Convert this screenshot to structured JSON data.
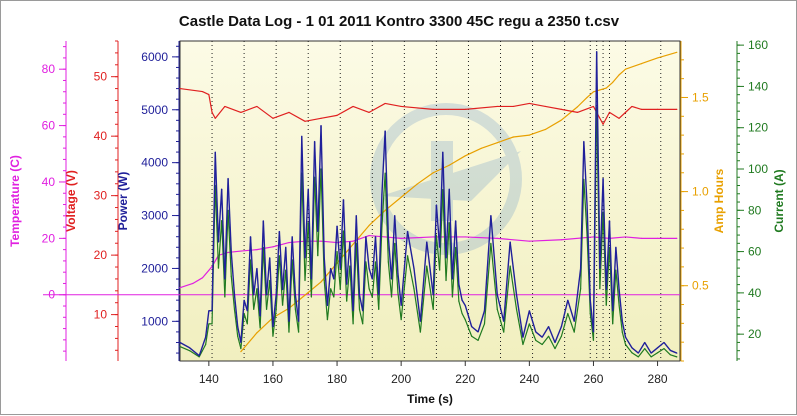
{
  "chart_data": {
    "type": "line",
    "title": "Castle Data Log - 1 01 2011 Kontro 3300 45C regu a 2350 t.csv",
    "xlabel": "Time (s)",
    "xlim": [
      131,
      287
    ],
    "xticks": [
      140,
      160,
      180,
      200,
      220,
      240,
      260,
      280
    ],
    "axes": [
      {
        "key": "temperature",
        "label": "Temperature (C)",
        "color": "#e020e0",
        "side": "left",
        "lim": [
          -23.5,
          90
        ],
        "ticks": [
          0,
          20,
          40,
          60,
          80
        ]
      },
      {
        "key": "voltage",
        "label": "Voltage (V)",
        "color": "#e02020",
        "side": "left",
        "lim": [
          2.2,
          56
        ],
        "ticks": [
          10,
          20,
          30,
          40,
          50
        ]
      },
      {
        "key": "power",
        "label": "Power (W)",
        "color": "#20209a",
        "side": "left",
        "lim": [
          250,
          6300
        ],
        "ticks": [
          1000,
          2000,
          3000,
          4000,
          5000,
          6000
        ]
      },
      {
        "key": "amp_hours",
        "label": "Amp Hours",
        "color": "#e8a000",
        "side": "right",
        "lim": [
          0.1,
          1.8
        ],
        "ticks": [
          0.5,
          1.0,
          1.5
        ]
      },
      {
        "key": "current",
        "label": "Current (A)",
        "color": "#207a20",
        "side": "right",
        "lim": [
          7,
          162
        ],
        "ticks": [
          20,
          40,
          60,
          80,
          100,
          120,
          140,
          160
        ]
      }
    ],
    "series": [
      {
        "name": "Temperature",
        "axis": "temperature",
        "color": "#e020e0",
        "x": [
          131,
          135,
          138,
          141,
          143,
          146,
          150,
          155,
          160,
          165,
          170,
          175,
          180,
          185,
          190,
          195,
          200,
          210,
          220,
          230,
          240,
          250,
          260,
          265,
          270,
          275,
          280,
          286
        ],
        "y": [
          2.5,
          4,
          6,
          10,
          14,
          15,
          15.5,
          16,
          17,
          18.5,
          19,
          19,
          18.5,
          19,
          21,
          20.5,
          20,
          20.5,
          20.5,
          20,
          19,
          19.5,
          20.5,
          20,
          20.5,
          20,
          20,
          20
        ]
      },
      {
        "name": "Voltage",
        "axis": "voltage",
        "color": "#e02020",
        "x": [
          131,
          138,
          140,
          141,
          142,
          145,
          150,
          155,
          160,
          165,
          170,
          175,
          180,
          185,
          190,
          195,
          200,
          210,
          220,
          230,
          235,
          240,
          245,
          250,
          255,
          260,
          263,
          265,
          268,
          270,
          272,
          275,
          280,
          286
        ],
        "y": [
          48,
          47.5,
          47,
          44,
          43,
          45,
          44,
          45,
          43,
          44,
          42.5,
          43,
          43.5,
          45,
          44,
          45.5,
          45,
          44.5,
          44.5,
          45,
          45,
          45.5,
          45,
          44.5,
          44,
          45,
          42,
          44,
          43,
          44,
          45,
          44.5,
          44.5,
          44.5
        ]
      },
      {
        "name": "Power",
        "axis": "power",
        "color": "#20209a",
        "x": [
          131,
          134,
          137,
          139,
          140,
          141,
          142,
          143,
          144,
          145,
          146,
          147,
          148,
          149,
          150,
          151,
          152,
          153,
          154,
          155,
          156,
          157,
          158,
          159,
          160,
          161,
          162,
          163,
          164,
          165,
          166,
          167,
          168,
          169,
          170,
          171,
          172,
          173,
          174,
          175,
          176,
          177,
          178,
          179,
          180,
          181,
          182,
          183,
          184,
          185,
          186,
          187,
          188,
          189,
          190,
          191,
          192,
          193,
          194,
          195,
          196,
          197,
          198,
          199,
          200,
          202,
          204,
          206,
          208,
          210,
          211,
          212,
          213,
          214,
          215,
          216,
          217,
          218,
          219,
          220,
          222,
          224,
          226,
          228,
          230,
          232,
          234,
          236,
          238,
          240,
          242,
          244,
          246,
          248,
          250,
          252,
          254,
          256,
          257,
          258,
          259,
          260,
          261,
          262,
          263,
          264,
          265,
          266,
          267,
          268,
          269,
          270,
          272,
          274,
          276,
          278,
          280,
          282,
          284,
          286
        ],
        "y": [
          600,
          500,
          350,
          700,
          1200,
          1200,
          4200,
          2500,
          3500,
          1800,
          3700,
          2300,
          1500,
          900,
          600,
          1400,
          1200,
          2600,
          1500,
          2000,
          1100,
          2900,
          1500,
          2200,
          900,
          1500,
          2700,
          1600,
          2400,
          1000,
          2600,
          1500,
          1000,
          4500,
          2200,
          3500,
          1800,
          4400,
          2700,
          4700,
          2200,
          1300,
          2000,
          1800,
          2800,
          2000,
          3300,
          1700,
          2500,
          1200,
          3000,
          1500,
          1200,
          2600,
          2000,
          1800,
          2600,
          1500,
          3400,
          4600,
          2600,
          1800,
          3000,
          1900,
          1300,
          2700,
          2000,
          1000,
          2500,
          1500,
          3200,
          2400,
          4200,
          2200,
          3500,
          1800,
          2900,
          1700,
          1400,
          1300,
          900,
          800,
          1200,
          3000,
          1500,
          1000,
          2500,
          1500,
          700,
          1200,
          800,
          700,
          900,
          600,
          900,
          1400,
          1000,
          2000,
          4400,
          3200,
          1400,
          800,
          6100,
          2000,
          3700,
          1600,
          2900,
          1200,
          2400,
          1600,
          1000,
          700,
          500,
          400,
          600,
          400,
          500,
          600,
          450,
          400
        ]
      },
      {
        "name": "Amp Hours",
        "axis": "amp_hours",
        "color": "#e8a000",
        "x": [
          150,
          155,
          160,
          165,
          170,
          175,
          180,
          185,
          190,
          195,
          200,
          205,
          210,
          215,
          220,
          225,
          230,
          235,
          240,
          245,
          250,
          255,
          258,
          260,
          262,
          264,
          266,
          268,
          270,
          275,
          280,
          286
        ],
        "y": [
          0.15,
          0.25,
          0.33,
          0.38,
          0.45,
          0.52,
          0.62,
          0.72,
          0.82,
          0.9,
          0.97,
          1.04,
          1.1,
          1.14,
          1.19,
          1.23,
          1.26,
          1.29,
          1.3,
          1.33,
          1.38,
          1.45,
          1.5,
          1.53,
          1.54,
          1.55,
          1.58,
          1.62,
          1.65,
          1.68,
          1.71,
          1.74
        ]
      },
      {
        "name": "Current",
        "axis": "current",
        "color": "#207a20",
        "x": [
          131,
          134,
          137,
          139,
          140,
          141,
          142,
          143,
          144,
          145,
          146,
          147,
          148,
          149,
          150,
          151,
          152,
          153,
          154,
          155,
          156,
          157,
          158,
          159,
          160,
          161,
          162,
          163,
          164,
          165,
          166,
          167,
          168,
          169,
          170,
          171,
          172,
          173,
          174,
          175,
          176,
          177,
          178,
          179,
          180,
          181,
          182,
          183,
          184,
          185,
          186,
          187,
          188,
          189,
          190,
          191,
          192,
          193,
          194,
          195,
          196,
          197,
          198,
          199,
          200,
          202,
          204,
          206,
          208,
          210,
          211,
          212,
          213,
          214,
          215,
          216,
          217,
          218,
          219,
          220,
          222,
          224,
          226,
          228,
          230,
          232,
          234,
          236,
          238,
          240,
          242,
          244,
          246,
          248,
          250,
          252,
          254,
          256,
          257,
          258,
          259,
          260,
          261,
          262,
          263,
          264,
          265,
          266,
          267,
          268,
          269,
          270,
          272,
          274,
          276,
          278,
          280,
          282,
          284,
          286
        ],
        "y": [
          14,
          12,
          9,
          15,
          25,
          25,
          92,
          52,
          75,
          38,
          80,
          48,
          32,
          19,
          13,
          30,
          25,
          56,
          32,
          42,
          23,
          62,
          32,
          46,
          19,
          32,
          58,
          34,
          51,
          21,
          56,
          32,
          21,
          98,
          46,
          74,
          38,
          96,
          58,
          100,
          46,
          27,
          42,
          38,
          60,
          42,
          70,
          36,
          53,
          25,
          64,
          32,
          25,
          55,
          42,
          38,
          55,
          32,
          72,
          98,
          55,
          38,
          64,
          40,
          27,
          58,
          42,
          21,
          53,
          32,
          68,
          51,
          90,
          46,
          74,
          38,
          62,
          36,
          30,
          27,
          19,
          17,
          25,
          64,
          32,
          21,
          53,
          32,
          15,
          25,
          17,
          15,
          19,
          13,
          19,
          30,
          21,
          42,
          95,
          68,
          30,
          17,
          130,
          42,
          79,
          34,
          62,
          25,
          51,
          34,
          21,
          15,
          11,
          9,
          13,
          9,
          11,
          13,
          10,
          9
        ]
      }
    ],
    "reference_lines": [
      {
        "axis": "temperature",
        "value": 0,
        "color": "#e020e0"
      }
    ],
    "vertical_markers": [
      141,
      151,
      161,
      171,
      181,
      191,
      201,
      211,
      221,
      231,
      241,
      251,
      259,
      261,
      263,
      265,
      270,
      281
    ],
    "grid": true
  }
}
